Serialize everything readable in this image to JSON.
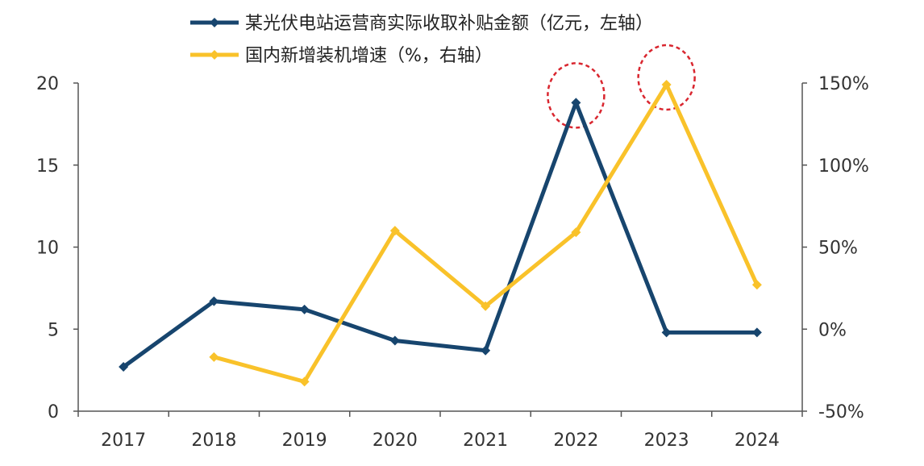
{
  "chart_data": {
    "type": "line",
    "categories": [
      "2017",
      "2018",
      "2019",
      "2020",
      "2021",
      "2022",
      "2023",
      "2024"
    ],
    "series": [
      {
        "name": "某光伏电站运营商实际收取补贴金额（亿元，左轴）",
        "axis": "left",
        "color": "#17456e",
        "marker": "diamond",
        "values": [
          2.7,
          6.7,
          6.2,
          4.3,
          3.7,
          18.8,
          4.8,
          4.8
        ]
      },
      {
        "name": "国内新增装机增速（%，右轴）",
        "axis": "right",
        "color": "#f9c22a",
        "marker": "diamond",
        "values": [
          null,
          -17,
          -32,
          60,
          14,
          59,
          149,
          27
        ]
      }
    ],
    "y_left": {
      "min": 0,
      "max": 20,
      "ticks": [
        "0",
        "5",
        "10",
        "15",
        "20"
      ]
    },
    "y_right": {
      "min": -50,
      "max": 150,
      "ticks": [
        "-50%",
        "0%",
        "50%",
        "100%",
        "150%"
      ]
    },
    "highlighted": [
      "2022",
      "2023"
    ],
    "highlight_color": "#d9262f",
    "legend_position": "top-left",
    "grid": false
  }
}
